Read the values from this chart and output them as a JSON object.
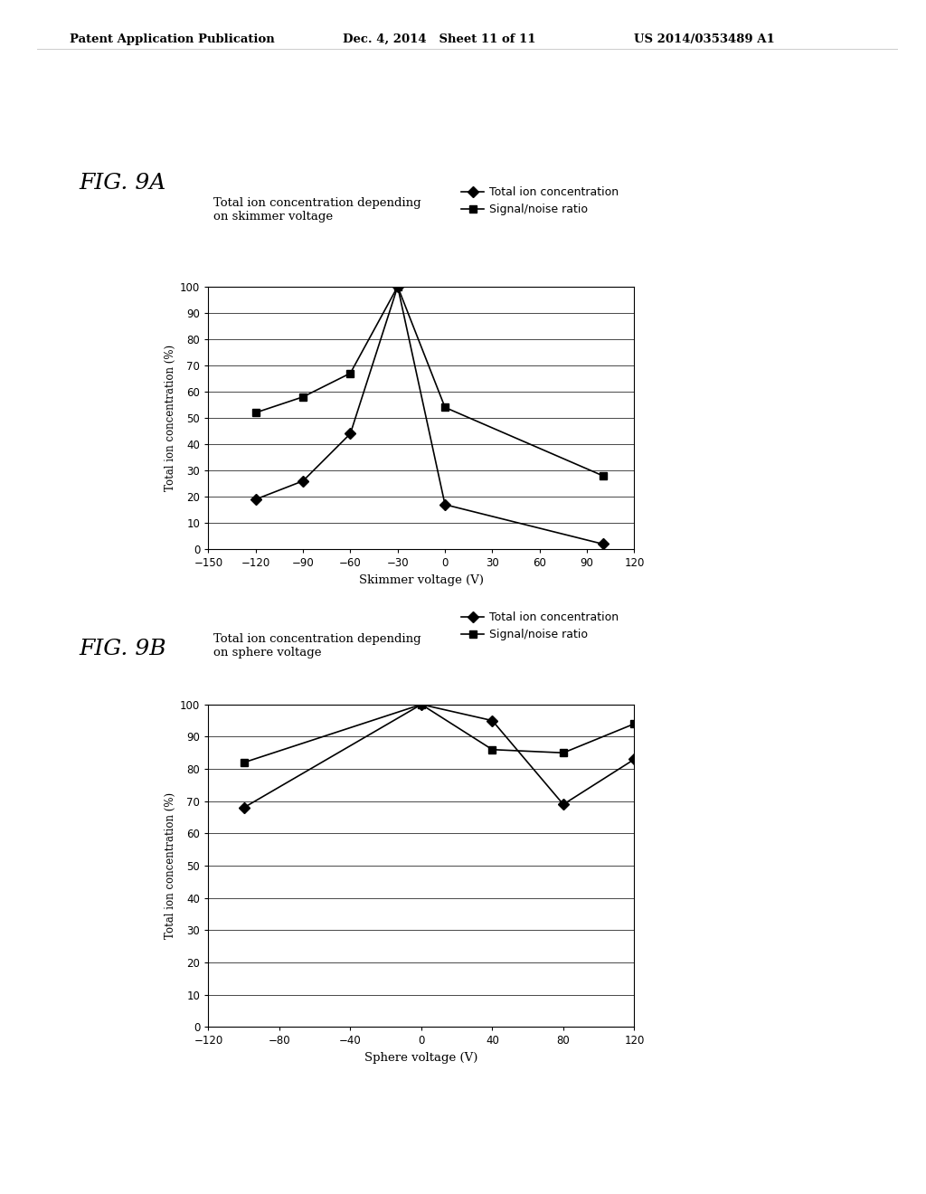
{
  "header_left": "Patent Application Publication",
  "header_mid": "Dec. 4, 2014   Sheet 11 of 11",
  "header_right": "US 2014/0353489 A1",
  "fig9a_label": "FIG. 9A",
  "fig9a_title_line1": "Total ion concentration depending",
  "fig9a_title_line2": "on skimmer voltage",
  "fig9a_xlabel": "Skimmer voltage (V)",
  "fig9a_ylabel": "Total ion concentration (%)",
  "fig9a_xlim": [
    -150,
    120
  ],
  "fig9a_ylim": [
    0,
    100
  ],
  "fig9a_xticks": [
    -150,
    -120,
    -90,
    -60,
    -30,
    0,
    30,
    60,
    90,
    120
  ],
  "fig9a_yticks": [
    0,
    10,
    20,
    30,
    40,
    50,
    60,
    70,
    80,
    90,
    100
  ],
  "fig9a_series1_x": [
    -120,
    -90,
    -60,
    -30,
    0,
    100
  ],
  "fig9a_series1_y": [
    19,
    26,
    44,
    100,
    17,
    2
  ],
  "fig9a_series2_x": [
    -120,
    -90,
    -60,
    -30,
    0,
    100
  ],
  "fig9a_series2_y": [
    52,
    58,
    67,
    100,
    54,
    28
  ],
  "fig9b_label": "FIG. 9B",
  "fig9b_title_line1": "Total ion concentration depending",
  "fig9b_title_line2": "on sphere voltage",
  "fig9b_xlabel": "Sphere voltage (V)",
  "fig9b_ylabel": "Total ion concentration (%)",
  "fig9b_xlim": [
    -120,
    120
  ],
  "fig9b_ylim": [
    0,
    100
  ],
  "fig9b_xticks": [
    -120,
    -80,
    -40,
    0,
    40,
    80,
    120
  ],
  "fig9b_yticks": [
    0,
    10,
    20,
    30,
    40,
    50,
    60,
    70,
    80,
    90,
    100
  ],
  "fig9b_series1_x": [
    -100,
    0,
    40,
    80,
    120
  ],
  "fig9b_series1_y": [
    68,
    100,
    95,
    69,
    83
  ],
  "fig9b_series2_x": [
    -100,
    0,
    40,
    80,
    120
  ],
  "fig9b_series2_y": [
    82,
    100,
    86,
    85,
    94
  ],
  "legend_label1": "Total ion concentration",
  "legend_label2": "Signal/noise ratio",
  "line_color": "#000000",
  "bg_color": "#ffffff",
  "marker_diamond": "D",
  "marker_square": "s",
  "marker_size": 6,
  "line_width": 1.2
}
